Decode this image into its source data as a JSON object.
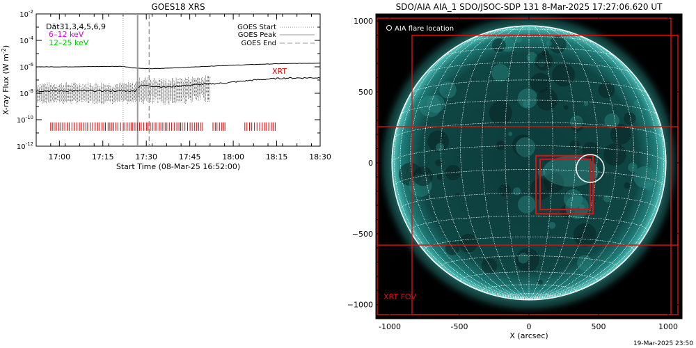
{
  "colors": {
    "flux_long": "#000000",
    "flux_short": "#000000",
    "xrt_marks": "#dd0000",
    "goes_start": "#999999",
    "goes_peak": "#999999",
    "goes_end": "#999999",
    "legend_6_12": "#dd00dd",
    "legend_12_25": "#00cc00",
    "fov_box": "#dd1111",
    "aia_disk": "#0a3433",
    "grid": "#ffffff"
  },
  "chart_data": [
    {
      "type": "line",
      "title": "GOES18 XRS",
      "xlabel": "Start Time (08-Mar-25 16:52:00)",
      "ylabel": "X-ray Flux (W m^-2)",
      "ylabel_parts": {
        "main": "X-ray Flux (W m",
        "exp": "-2",
        "close": ")"
      },
      "x_range": [
        "16:52",
        "18:30"
      ],
      "x_ticks": [
        "17:00",
        "17:15",
        "17:30",
        "17:45",
        "18:00",
        "18:15",
        "18:30"
      ],
      "x_tick_minutes": [
        8,
        23,
        38,
        53,
        68,
        83,
        98
      ],
      "y_scale": "log",
      "ylim": [
        1e-12,
        0.01
      ],
      "y_tick_exponents": [
        -2,
        -4,
        -6,
        -8,
        -10,
        -12
      ],
      "legend_lines": [
        "Dät31,3,4,5,6,9",
        "6–12 keV",
        "12–25 keV"
      ],
      "vline_legend": [
        "GOES Start",
        "GOES Peak",
        "GOES End"
      ],
      "vlines": [
        {
          "name": "GOES Start",
          "x": "17:22",
          "style": "dotted"
        },
        {
          "name": "GOES Peak",
          "x": "17:27",
          "style": "solid"
        },
        {
          "name": "GOES End",
          "x": "17:31",
          "style": "dashed"
        }
      ],
      "series": [
        {
          "name": "",
          "x_minutes": [
            0,
            10,
            20,
            30,
            33,
            38,
            43,
            53,
            63,
            73,
            83,
            93,
            98
          ],
          "values": [
            1e-06,
            1e-06,
            1.05e-06,
            1.1e-06,
            8.5e-07,
            7.2e-07,
            7.5e-07,
            9.5e-07,
            1.2e-06,
            1.45e-06,
            1.7e-06,
            1.85e-06,
            1.9e-06
          ]
        },
        {
          "name": "",
          "x_minutes": [
            0,
            34,
            36,
            40,
            45,
            55,
            65,
            75,
            85,
            98
          ],
          "values": [
            1.5e-08,
            1.5e-08,
            4e-08,
            3.5e-08,
            3e-08,
            4.5e-08,
            6e-08,
            1e-07,
            1.4e-07,
            1.5e-07
          ]
        }
      ],
      "xrt_label": "XRT",
      "xrt_coverage": [
        {
          "start": "16:57",
          "end": "17:50"
        },
        {
          "start": "17:53",
          "end": "17:58"
        },
        {
          "start": "18:04",
          "end": "18:15"
        }
      ]
    },
    {
      "type": "image",
      "title": "SDO/AIA AIA_1 SDO/JSOC-SDP 131  8-Mar-2025 17:27:06.620 UT",
      "xlabel": "X (arcsec)",
      "ylabel": "",
      "x_ticks": [
        -1000,
        -500,
        0,
        500,
        1000
      ],
      "y_ticks": [
        1000,
        500,
        0,
        -500,
        -1000
      ],
      "tick_labels_x": [
        "-1000",
        "-500",
        "0",
        "500",
        "1000"
      ],
      "tick_labels_y": [
        "1000",
        "500",
        "0",
        "−500",
        "−1000"
      ],
      "xlim": [
        -1100,
        1100
      ],
      "ylim": [
        -1100,
        1050
      ],
      "solar_radius_arcsec": 975,
      "legend_text": "AIA flare location",
      "fov_label": "XRT FOV",
      "flare_location": {
        "x": 440,
        "y": -40,
        "r": 100
      },
      "fov_boxes": [
        {
          "x0": -1090,
          "x1": 1020,
          "y0": -1070,
          "y1": 1020
        },
        {
          "x0": -840,
          "x1": 1070,
          "y0": -1070,
          "y1": 900
        },
        {
          "x0": -1090,
          "x1": 1070,
          "y0": -580,
          "y1": 255
        },
        {
          "x0": 50,
          "x1": 460,
          "y0": -360,
          "y1": 50
        },
        {
          "x0": 80,
          "x1": 440,
          "y0": -330,
          "y1": 25
        }
      ]
    }
  ],
  "footer": {
    "timestamp": "19-Mar-2025 23:50"
  }
}
